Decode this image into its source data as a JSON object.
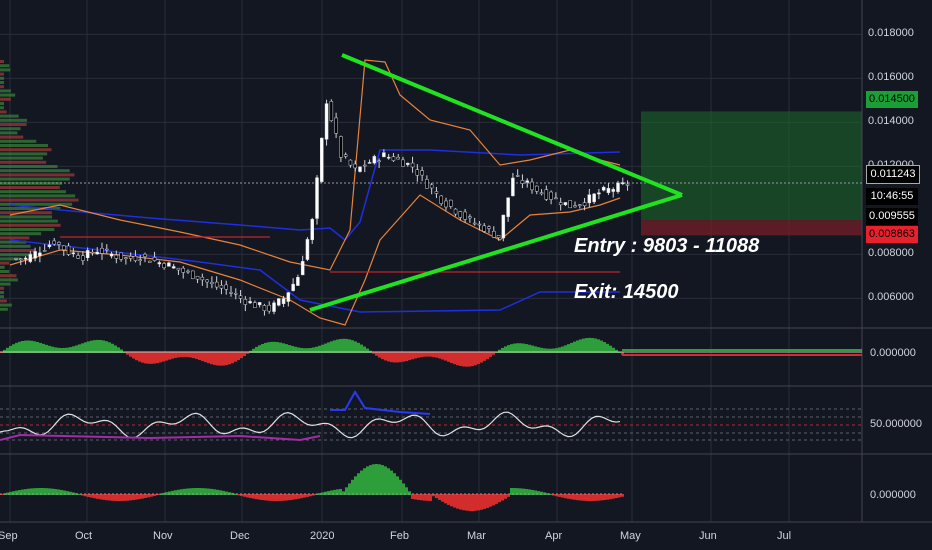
{
  "price_axis": {
    "ticks": [
      "0.018000",
      "0.016000",
      "0.014000",
      "0.012000",
      "0.008000",
      "0.006000"
    ],
    "tick_values": [
      0.018,
      0.016,
      0.014,
      0.012,
      0.008,
      0.006
    ]
  },
  "price_tags": {
    "target": {
      "text": "0.014500",
      "value": 0.0145,
      "color": "#26a69a"
    },
    "current": {
      "text": "0.011243",
      "value": 0.011243,
      "color": "#000000"
    },
    "countdown": {
      "text": "10:46:55",
      "color": "#000000"
    },
    "support": {
      "text": "0.009555",
      "value": 0.009555,
      "color": "#000000"
    },
    "stop": {
      "text": "0.008863",
      "value": 0.008863,
      "color": "#f23645"
    }
  },
  "annotations": {
    "entry": "Entry : 9803 - 11088",
    "exit": "Exit: 14500"
  },
  "panes": {
    "momentum": {
      "label": "0.000000"
    },
    "rsi": {
      "label": "50.000000"
    },
    "oscillator": {
      "label": "0.000000"
    }
  },
  "time_axis": {
    "labels": [
      "Sep",
      "Oct",
      "Nov",
      "Dec",
      "2020",
      "Feb",
      "Mar",
      "Apr",
      "May",
      "Jun",
      "Jul"
    ]
  },
  "colors": {
    "triangle": "#21e221",
    "bb_upper": "#e8833a",
    "keltner": "#1f2ee0",
    "grid": "#2a2e39",
    "up": "#ffffff",
    "down": "#000000"
  },
  "chart_data": {
    "type": "candlestick",
    "ylim": [
      0.0052,
      0.0188
    ],
    "x": [
      "Sep",
      "Oct",
      "Nov",
      "Dec",
      "2020",
      "Feb",
      "Mar",
      "Apr",
      "May",
      "Jun",
      "Jul"
    ],
    "close_series": [
      0.0078,
      0.0082,
      0.0086,
      0.0081,
      0.0079,
      0.0082,
      0.008,
      0.0078,
      0.0079,
      0.0077,
      0.0075,
      0.0072,
      0.007,
      0.0066,
      0.0064,
      0.006,
      0.0057,
      0.0055,
      0.006,
      0.007,
      0.0095,
      0.015,
      0.0125,
      0.0118,
      0.0122,
      0.0125,
      0.0123,
      0.012,
      0.0112,
      0.0105,
      0.01,
      0.0095,
      0.0092,
      0.0088,
      0.0115,
      0.0112,
      0.0108,
      0.0105,
      0.0102,
      0.0104,
      0.0108,
      0.011,
      0.0112
    ]
  }
}
